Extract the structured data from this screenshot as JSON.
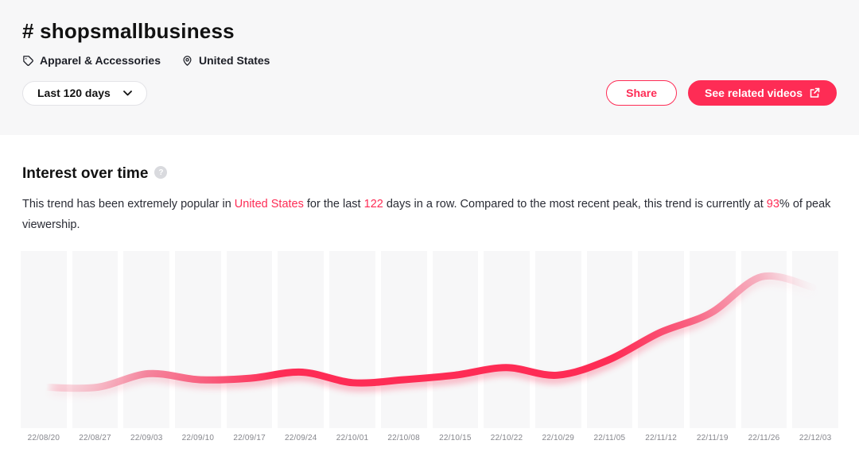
{
  "colors": {
    "accent": "#fe2c55",
    "header_bg": "#f7f7f8",
    "band": "#f7f7f8",
    "axis_label": "#85868c"
  },
  "header": {
    "title": "# shopsmallbusiness",
    "category": "Apparel & Accessories",
    "region": "United States",
    "period_selected": "Last 120 days",
    "share_label": "Share",
    "related_label": "See related videos"
  },
  "section": {
    "heading": "Interest over time",
    "help_icon": "?",
    "description": {
      "seg1": "This trend has been extremely popular in ",
      "highlight_region": "United States",
      "seg2": " for the last ",
      "highlight_days": "122",
      "seg3": " days in a row. Compared to the most recent peak, this trend is currently at ",
      "highlight_percent": "93",
      "seg4": "% of peak viewership."
    }
  },
  "chart_data": {
    "type": "line",
    "title": "Interest over time",
    "x": [
      "22/08/20",
      "22/08/27",
      "22/09/03",
      "22/09/10",
      "22/09/17",
      "22/09/24",
      "22/10/01",
      "22/10/08",
      "22/10/15",
      "22/10/22",
      "22/10/29",
      "22/11/05",
      "22/11/12",
      "22/11/19",
      "22/11/26",
      "22/12/03"
    ],
    "values": [
      27,
      27,
      36,
      32,
      33,
      37,
      30,
      32,
      35,
      40,
      35,
      45,
      63,
      76,
      100,
      93
    ],
    "ylim": [
      0,
      117
    ],
    "grid": "vertical-bands",
    "legend": "none",
    "line_color": "#fe2c55",
    "peak_date": "22/11/26",
    "current_percent_of_peak": 93
  }
}
